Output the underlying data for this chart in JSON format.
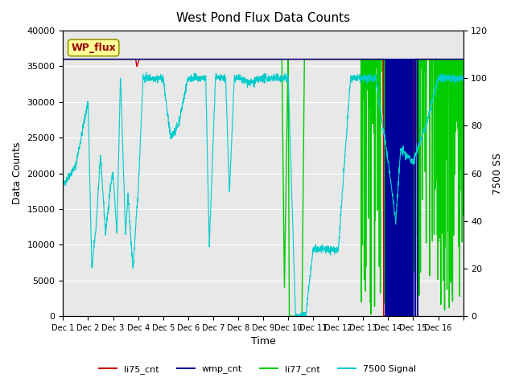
{
  "title": "West Pond Flux Data Counts",
  "ylabel_left": "Data Counts",
  "ylabel_right": "7500 SS",
  "xlabel": "Time",
  "xlim_days": [
    0,
    16
  ],
  "ylim_left": [
    0,
    40000
  ],
  "ylim_right": [
    0,
    120
  ],
  "xtick_labels": [
    "Dec 1",
    "Dec 2",
    "Dec 3",
    "Dec 4",
    "Dec 5",
    "Dec 6",
    "Dec 7",
    "Dec 8",
    "Dec 9",
    "Dec 10",
    "Dec 11",
    "Dec 12",
    "Dec 13",
    "Dec 14",
    "Dec 15",
    "Dec 16",
    ""
  ],
  "yticks_left": [
    0,
    5000,
    10000,
    15000,
    20000,
    25000,
    30000,
    35000,
    40000
  ],
  "yticks_right": [
    0,
    20,
    40,
    60,
    80,
    100,
    120
  ],
  "background_color": "#e8e8e8",
  "wp_flux_box_color": "#ffff99",
  "wp_flux_text_color": "#990000",
  "colors": {
    "li75_cnt": "#cc0000",
    "wmp_cnt": "#000099",
    "li77_cnt": "#00cc00",
    "signal_7500": "#00cccc"
  },
  "legend_labels": [
    "li75_cnt",
    "wmp_cnt",
    "li77_cnt",
    "7500 Signal"
  ]
}
